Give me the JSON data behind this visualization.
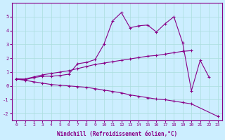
{
  "xlabel": "Windchill (Refroidissement éolien,°C)",
  "bg_color": "#cceeff",
  "line_color": "#880088",
  "grid_color": "#aadddd",
  "x_values": [
    0,
    1,
    2,
    3,
    4,
    5,
    6,
    7,
    8,
    9,
    10,
    11,
    12,
    13,
    14,
    15,
    16,
    17,
    18,
    19,
    20,
    21,
    22,
    23
  ],
  "line1_y": [
    0.5,
    0.45,
    0.6,
    0.7,
    0.7,
    0.75,
    0.85,
    1.6,
    1.7,
    1.9,
    3.0,
    4.7,
    5.3,
    4.2,
    4.35,
    4.4,
    3.9,
    4.5,
    5.0,
    3.1,
    -0.35,
    1.85,
    0.65,
    null
  ],
  "line2_y": [
    0.5,
    0.5,
    0.65,
    0.8,
    0.9,
    1.0,
    1.1,
    1.25,
    1.4,
    1.55,
    1.65,
    1.75,
    1.85,
    1.95,
    2.05,
    2.15,
    2.2,
    2.3,
    2.4,
    2.5,
    2.55,
    null,
    null,
    null
  ],
  "line3_y": [
    0.5,
    0.4,
    0.3,
    0.2,
    0.1,
    0.05,
    0.0,
    -0.05,
    -0.1,
    -0.2,
    -0.3,
    -0.4,
    -0.5,
    -0.65,
    -0.75,
    -0.85,
    -0.95,
    -1.0,
    -1.1,
    -1.2,
    -1.3,
    null,
    null,
    -2.2
  ],
  "ylim": [
    -2.5,
    6.0
  ],
  "xlim": [
    -0.5,
    23.5
  ],
  "yticks": [
    -2,
    -1,
    0,
    1,
    2,
    3,
    4,
    5
  ],
  "xticks": [
    0,
    1,
    2,
    3,
    4,
    5,
    6,
    7,
    8,
    9,
    10,
    11,
    12,
    13,
    14,
    15,
    16,
    17,
    18,
    19,
    20,
    21,
    22,
    23
  ]
}
